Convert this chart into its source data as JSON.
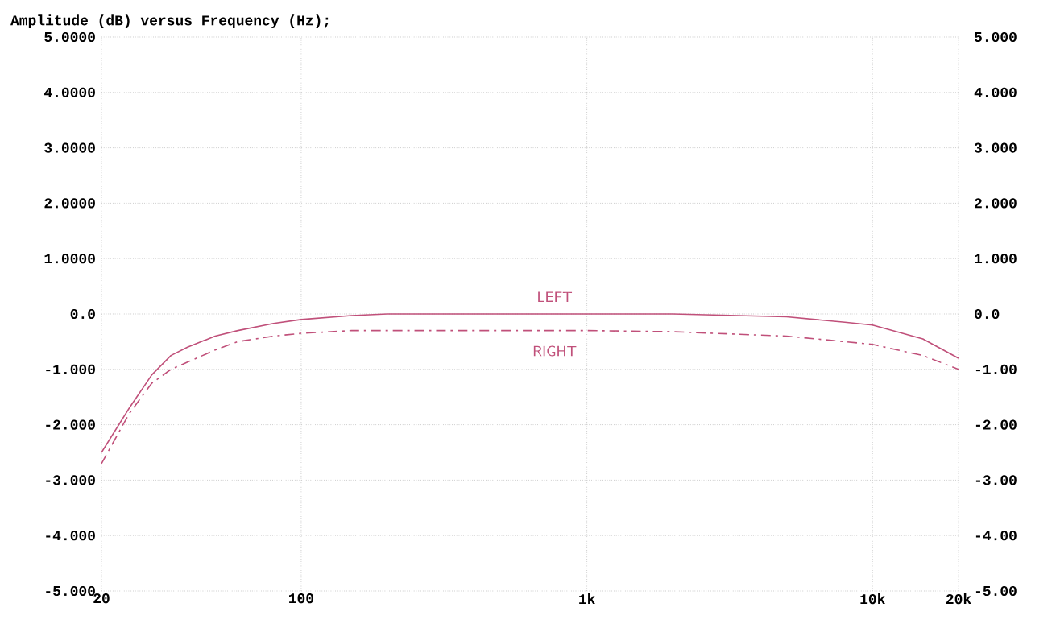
{
  "chart_data": {
    "type": "line",
    "title": "Amplitude (dB) versus Frequency (Hz);",
    "log": "x",
    "xlim": [
      20,
      20000
    ],
    "xticks": [
      20,
      100,
      {
        "value": 1000,
        "label": "1k"
      },
      {
        "value": 10000,
        "label": "10k"
      },
      {
        "value": 20000,
        "label": "20k"
      }
    ],
    "ylim": [
      -5,
      5
    ],
    "yticks": [
      {
        "value": -5,
        "label": "-5.000"
      },
      {
        "value": -4,
        "label": "-4.000"
      },
      {
        "value": -3,
        "label": "-3.000"
      },
      {
        "value": -2,
        "label": "-2.000"
      },
      {
        "value": -1,
        "label": "-1.000"
      },
      {
        "value": 0,
        "label": "0.0"
      },
      {
        "value": 1,
        "label": "1.0000"
      },
      {
        "value": 2,
        "label": "2.0000"
      },
      {
        "value": 3,
        "label": "3.0000"
      },
      {
        "value": 4,
        "label": "4.0000"
      },
      {
        "value": 5,
        "label": "5.0000"
      }
    ],
    "y2lim": [
      -5,
      5
    ],
    "y2ticks": [
      {
        "value": -5,
        "label": "-5.00"
      },
      {
        "value": -4,
        "label": "-4.00"
      },
      {
        "value": -3,
        "label": "-3.00"
      },
      {
        "value": -2,
        "label": "-2.00"
      },
      {
        "value": -1,
        "label": "-1.00"
      },
      {
        "value": 0,
        "label": "0.0"
      },
      {
        "value": 1,
        "label": "1.000"
      },
      {
        "value": 2,
        "label": "2.000"
      },
      {
        "value": 3,
        "label": "3.000"
      },
      {
        "value": 4,
        "label": "4.000"
      },
      {
        "value": 5,
        "label": "5.000"
      }
    ],
    "grid": true,
    "marker": "none",
    "x": [
      20,
      25,
      30,
      35,
      40,
      50,
      60,
      80,
      100,
      150,
      200,
      500,
      1000,
      2000,
      5000,
      8000,
      10000,
      15000,
      20000
    ],
    "series": [
      {
        "color": "#c0507a",
        "line_style": "solid",
        "values": [
          -2.5,
          -1.7,
          -1.1,
          -0.75,
          -0.6,
          -0.4,
          -0.3,
          -0.17,
          -0.1,
          -0.03,
          0,
          0,
          0,
          0,
          -0.05,
          -0.15,
          -0.2,
          -0.45,
          -0.8
        ]
      },
      {
        "color": "#c0507a",
        "line_style": "dashed",
        "values": [
          -2.7,
          -1.8,
          -1.25,
          -1.0,
          -0.87,
          -0.65,
          -0.5,
          -0.4,
          -0.35,
          -0.3,
          -0.3,
          -0.3,
          -0.3,
          -0.32,
          -0.4,
          -0.5,
          -0.55,
          -0.75,
          -1.0
        ]
      }
    ],
    "annotations": [
      "LEFT",
      "RIGHT"
    ]
  }
}
